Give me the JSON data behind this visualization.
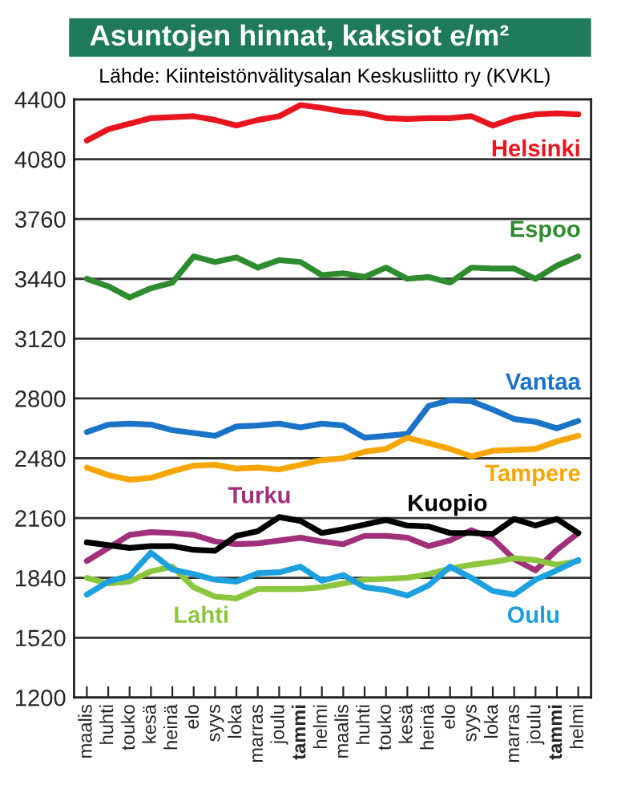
{
  "chart_data": {
    "type": "line",
    "title": "Asuntojen hinnat, kaksiot e/m²",
    "subtitle": "Lähde: Kiinteistönvälitysalan Keskusliitto ry (KVKL)",
    "categories": [
      "maalis",
      "huhti",
      "touko",
      "kesä",
      "heinä",
      "elo",
      "syys",
      "loka",
      "marras",
      "joulu",
      "tammi",
      "helmi",
      "maalis",
      "huhti",
      "touko",
      "kesä",
      "heinä",
      "elo",
      "syys",
      "loka",
      "marras",
      "joulu",
      "tammi",
      "helmi"
    ],
    "series": [
      {
        "name": "Helsinki",
        "color": "#e8141e",
        "values": [
          4180,
          4240,
          4270,
          4300,
          4305,
          4310,
          4290,
          4260,
          4290,
          4310,
          4370,
          4355,
          4335,
          4325,
          4300,
          4295,
          4300,
          4300,
          4310,
          4260,
          4300,
          4320,
          4325,
          4320
        ]
      },
      {
        "name": "Espoo",
        "color": "#2e8b2e",
        "values": [
          3440,
          3400,
          3340,
          3390,
          3420,
          3560,
          3530,
          3555,
          3500,
          3540,
          3530,
          3460,
          3470,
          3450,
          3500,
          3440,
          3450,
          3420,
          3500,
          3495,
          3495,
          3440,
          3510,
          3560
        ]
      },
      {
        "name": "Vantaa",
        "color": "#1a73c7",
        "values": [
          2620,
          2660,
          2665,
          2660,
          2630,
          2615,
          2600,
          2650,
          2655,
          2665,
          2645,
          2665,
          2655,
          2590,
          2600,
          2610,
          2760,
          2790,
          2785,
          2740,
          2690,
          2675,
          2640,
          2680
        ]
      },
      {
        "name": "Tampere",
        "color": "#f7a600",
        "values": [
          2430,
          2390,
          2365,
          2375,
          2410,
          2440,
          2445,
          2425,
          2430,
          2420,
          2445,
          2470,
          2480,
          2515,
          2530,
          2590,
          2560,
          2530,
          2490,
          2520,
          2525,
          2530,
          2570,
          2600
        ]
      },
      {
        "name": "Turku",
        "color": "#a0307a",
        "values": [
          1930,
          2000,
          2070,
          2085,
          2080,
          2070,
          2035,
          2020,
          2025,
          2040,
          2055,
          2035,
          2020,
          2065,
          2065,
          2055,
          2010,
          2040,
          2095,
          2050,
          1940,
          1880,
          1990,
          2080
        ]
      },
      {
        "name": "Kuopio",
        "color": "#000000",
        "values": [
          2030,
          2015,
          2000,
          2010,
          2010,
          1990,
          1985,
          2065,
          2090,
          2165,
          2145,
          2080,
          2100,
          2125,
          2150,
          2120,
          2115,
          2080,
          2080,
          2075,
          2155,
          2120,
          2155,
          2080
        ]
      },
      {
        "name": "Lahti",
        "color": "#8cc63f",
        "values": [
          1840,
          1810,
          1820,
          1875,
          1900,
          1790,
          1740,
          1730,
          1780,
          1780,
          1780,
          1790,
          1810,
          1830,
          1835,
          1840,
          1860,
          1890,
          1910,
          1925,
          1945,
          1935,
          1910,
          1930
        ]
      },
      {
        "name": "Oulu",
        "color": "#1ca0e0",
        "values": [
          1750,
          1820,
          1850,
          1975,
          1885,
          1860,
          1830,
          1820,
          1865,
          1870,
          1900,
          1825,
          1855,
          1790,
          1775,
          1745,
          1800,
          1900,
          1840,
          1770,
          1750,
          1830,
          1880,
          1935
        ]
      }
    ],
    "ylim": [
      1200,
      4400
    ],
    "yticks": [
      1200,
      1520,
      1840,
      2160,
      2480,
      2800,
      3120,
      3440,
      3760,
      4080,
      4400
    ],
    "grid": "y",
    "legend": false
  }
}
